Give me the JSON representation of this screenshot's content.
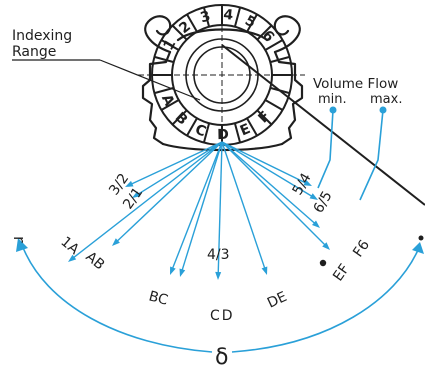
{
  "labels": {
    "indexing_line1": "Indexing",
    "indexing_line2": "Range",
    "volume_flow": "Volume Flow",
    "min": "min.",
    "max": "max.",
    "delta": "δ",
    "left_edge_mark": "r"
  },
  "dial": {
    "top_segments": [
      "1",
      "2",
      "3",
      "4",
      "5",
      "6"
    ],
    "bottom_segments": [
      "A",
      "B",
      "C",
      "D",
      "E",
      "F"
    ]
  },
  "positions": [
    "3/2",
    "2/1",
    "1A",
    "AB",
    "BC",
    "4/3",
    "CD",
    "DE",
    "5/4",
    "6/5",
    "EF",
    "F6"
  ],
  "colors": {
    "accent": "#2aa0d8",
    "ink": "#1f1f1f"
  }
}
